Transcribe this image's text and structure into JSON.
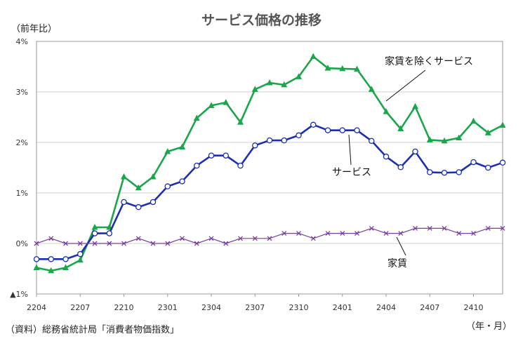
{
  "chart_data": {
    "type": "line",
    "title": "サービス価格の推移",
    "ylabel": "（前年比）",
    "xlabel": "（年・月）",
    "source": "（資料）総務省統計局「消費者物価指数」",
    "ylim": [
      -1,
      4
    ],
    "y_ticks": [
      4,
      3,
      2,
      1,
      0,
      -1
    ],
    "y_tick_labels": [
      "4%",
      "3%",
      "2%",
      "1%",
      "0%",
      "▲1%"
    ],
    "x_tick_labels": [
      "2204",
      "2207",
      "2210",
      "2301",
      "2304",
      "2307",
      "2310",
      "2401",
      "2404",
      "2407",
      "2410"
    ],
    "x_tick_every": 3,
    "grid": "horizontal",
    "x": [
      "2204",
      "2205",
      "2206",
      "2207",
      "2208",
      "2209",
      "2210",
      "2211",
      "2212",
      "2301",
      "2302",
      "2303",
      "2304",
      "2305",
      "2306",
      "2307",
      "2308",
      "2309",
      "2310",
      "2311",
      "2312",
      "2401",
      "2402",
      "2403",
      "2404",
      "2405",
      "2406",
      "2407",
      "2408",
      "2409",
      "2410",
      "2411",
      "2412"
    ],
    "series": [
      {
        "name": "家賃を除くサービス",
        "color": "#1aa64a",
        "marker": "triangle",
        "values": [
          -0.48,
          -0.54,
          -0.48,
          -0.33,
          0.32,
          0.32,
          1.32,
          1.1,
          1.32,
          1.82,
          1.91,
          2.48,
          2.73,
          2.79,
          2.4,
          3.05,
          3.18,
          3.14,
          3.3,
          3.7,
          3.47,
          3.46,
          3.45,
          3.05,
          2.61,
          2.27,
          2.71,
          2.05,
          2.03,
          2.09,
          2.42,
          2.19,
          2.34
        ]
      },
      {
        "name": "サービス",
        "color": "#1c2fb0",
        "marker": "circle",
        "values": [
          -0.31,
          -0.31,
          -0.31,
          -0.21,
          0.2,
          0.2,
          0.82,
          0.72,
          0.82,
          1.13,
          1.23,
          1.54,
          1.74,
          1.74,
          1.54,
          1.94,
          2.04,
          2.04,
          2.14,
          2.35,
          2.24,
          2.24,
          2.24,
          2.03,
          1.72,
          1.51,
          1.82,
          1.41,
          1.4,
          1.41,
          1.61,
          1.5,
          1.6
        ]
      },
      {
        "name": "家賃",
        "color": "#7a3f9e",
        "marker": "x",
        "values": [
          0.0,
          0.1,
          0.0,
          0.0,
          0.0,
          0.0,
          0.0,
          0.1,
          0.0,
          0.0,
          0.1,
          0.0,
          0.1,
          0.0,
          0.1,
          0.1,
          0.1,
          0.2,
          0.2,
          0.1,
          0.2,
          0.2,
          0.2,
          0.3,
          0.2,
          0.2,
          0.3,
          0.3,
          0.3,
          0.2,
          0.2,
          0.3,
          0.3
        ]
      }
    ],
    "annotations": [
      "家賃を除くサービス",
      "サービス",
      "家賃"
    ]
  }
}
